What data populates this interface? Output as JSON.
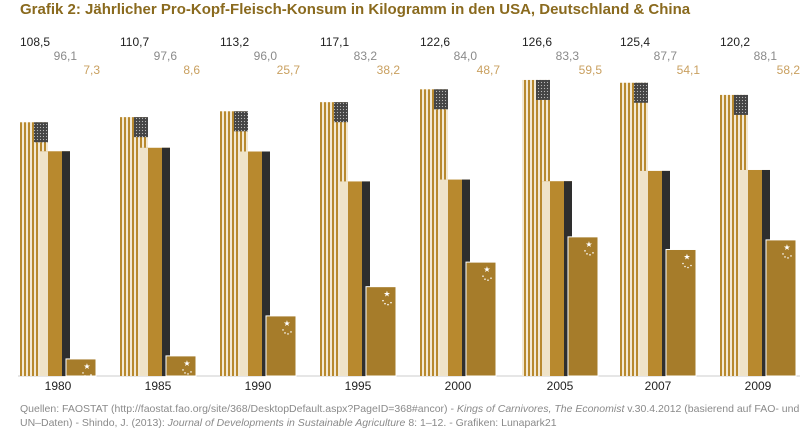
{
  "chart_data": {
    "type": "bar",
    "title": "Grafik 2: Jährlicher Pro-Kopf-Fleisch-Konsum in Kilogramm in den USA, Deutschland & China",
    "categories": [
      "1980",
      "1985",
      "1990",
      "1995",
      "2000",
      "2005",
      "2007",
      "2009"
    ],
    "series": [
      {
        "color": "#b8892e",
        "values": [
          108.5,
          110.7,
          113.2,
          117.1,
          122.6,
          126.6,
          125.4,
          120.2
        ],
        "value_labels": [
          "108,5",
          "110,7",
          "113,2",
          "117,1",
          "122,6",
          "126,6",
          "125,4",
          "120,2"
        ]
      },
      {
        "color": "#8a8a8a",
        "values": [
          96.1,
          97.6,
          96.0,
          83.2,
          84.0,
          83.3,
          87.7,
          88.1
        ],
        "value_labels": [
          "96,1",
          "97,6",
          "96,0",
          "83,2",
          "84,0",
          "83,3",
          "87,7",
          "88,1"
        ]
      },
      {
        "color": "#a67c2a",
        "values": [
          7.3,
          8.6,
          25.7,
          38.2,
          48.7,
          59.5,
          54.1,
          58.2
        ],
        "value_labels": [
          "7,3",
          "8,6",
          "25,7",
          "38,2",
          "48,7",
          "59,5",
          "54,1",
          "58,2"
        ]
      }
    ],
    "ylim": [
      0,
      130
    ],
    "source": [
      "Quellen: FAOSTAT (http://faostat.fao.org/site/368/DesktopDefault.aspx?PageID=368#ancor) - ",
      "Kings of Carnivores, The Economist",
      " v.30.4.2012 (basierend auf FAO- und UN–Daten) - Shindo, J. (2013): ",
      "Journal of Developments in Sustainable Agriculture",
      " 8: 1–12. - Grafiken: Lunapark21"
    ]
  }
}
